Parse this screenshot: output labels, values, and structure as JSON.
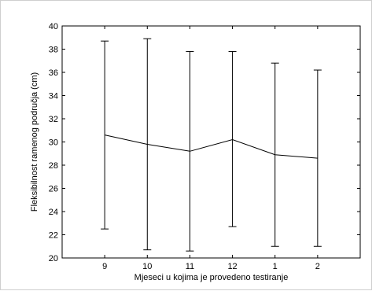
{
  "chart_data": {
    "type": "line",
    "title": "",
    "xlabel": "Mjeseci u kojima je provedeno testiranje",
    "ylabel": "Fleksibilnost ramenog područja (cm)",
    "categories": [
      "9",
      "10",
      "11",
      "12",
      "1",
      "2"
    ],
    "series": [
      {
        "values": [
          30.6,
          29.8,
          29.2,
          30.2,
          28.9,
          28.6
        ],
        "error_low": [
          22.5,
          20.7,
          20.6,
          22.7,
          21.0,
          21.0
        ],
        "error_high": [
          38.7,
          38.9,
          37.8,
          37.8,
          36.8,
          36.2
        ],
        "color": "#000000"
      }
    ],
    "ylim": [
      20,
      40
    ],
    "yticks": [
      "20",
      "22",
      "24",
      "26",
      "28",
      "30",
      "32",
      "34",
      "36",
      "38",
      "40"
    ],
    "xlim": [
      0,
      7
    ],
    "grid": false,
    "legend": "none"
  }
}
